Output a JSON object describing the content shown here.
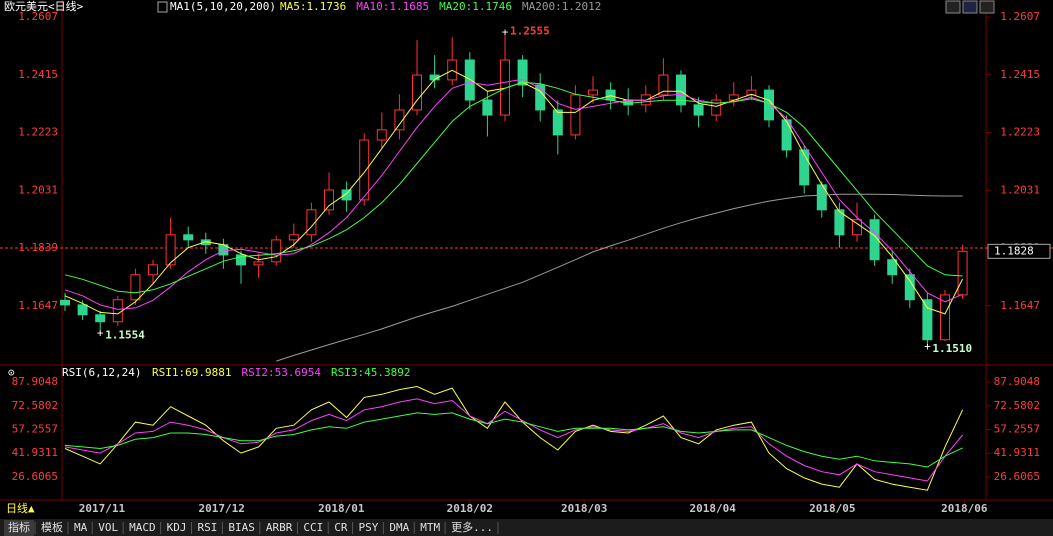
{
  "header": {
    "title": "欧元美元<日线>",
    "indicator": "MA1(5,10,20,200)"
  },
  "chart_data": [
    {
      "type": "candlestick",
      "up_color": "#ff3232",
      "down_color": "#2ed58f",
      "open": [
        1.1665,
        1.165,
        1.1617,
        1.1594,
        1.1667,
        1.175,
        1.1783,
        1.1883,
        1.1866,
        1.185,
        1.1816,
        1.1783,
        1.1793,
        1.1866,
        1.1883,
        1.1966,
        1.2032,
        1.1999,
        1.2198,
        1.2232,
        1.2298,
        1.2414,
        1.2398,
        1.2464,
        1.2331,
        1.2281,
        1.2464,
        1.2381,
        1.2298,
        1.2215,
        1.2348,
        1.2364,
        1.2331,
        1.2315,
        1.2348,
        1.2414,
        1.2315,
        1.2281,
        1.2331,
        1.2348,
        1.2364,
        1.2265,
        1.2165,
        1.2049,
        1.1966,
        1.1883,
        1.1933,
        1.18,
        1.175,
        1.1667,
        1.1534,
        1.1683
      ],
      "high": [
        1.169,
        1.1665,
        1.163,
        1.168,
        1.177,
        1.18,
        1.194,
        1.191,
        1.189,
        1.187,
        1.183,
        1.182,
        1.188,
        1.192,
        1.199,
        1.209,
        1.206,
        1.222,
        1.229,
        1.235,
        1.253,
        1.248,
        1.254,
        1.249,
        1.236,
        1.2555,
        1.248,
        1.242,
        1.233,
        1.238,
        1.241,
        1.239,
        1.237,
        1.238,
        1.247,
        1.243,
        1.234,
        1.235,
        1.239,
        1.241,
        1.238,
        1.228,
        1.218,
        1.206,
        1.199,
        1.199,
        1.195,
        1.183,
        1.177,
        1.169,
        1.17,
        1.185
      ],
      "low": [
        1.163,
        1.16,
        1.1554,
        1.158,
        1.165,
        1.172,
        1.177,
        1.184,
        1.182,
        1.177,
        1.172,
        1.174,
        1.178,
        1.184,
        1.186,
        1.195,
        1.196,
        1.198,
        1.217,
        1.22,
        1.228,
        1.237,
        1.238,
        1.23,
        1.221,
        1.226,
        1.234,
        1.226,
        1.215,
        1.22,
        1.232,
        1.23,
        1.228,
        1.229,
        1.233,
        1.229,
        1.224,
        1.226,
        1.231,
        1.233,
        1.224,
        1.214,
        1.202,
        1.194,
        1.184,
        1.186,
        1.178,
        1.172,
        1.164,
        1.151,
        1.153,
        1.167
      ],
      "close": [
        1.165,
        1.1617,
        1.1594,
        1.1667,
        1.175,
        1.1783,
        1.1883,
        1.1866,
        1.185,
        1.1816,
        1.1783,
        1.1793,
        1.1866,
        1.1883,
        1.1966,
        1.2032,
        1.1999,
        1.2198,
        1.2232,
        1.2298,
        1.2414,
        1.2398,
        1.2464,
        1.2331,
        1.2281,
        1.2464,
        1.2381,
        1.2298,
        1.2215,
        1.2348,
        1.2364,
        1.2331,
        1.2315,
        1.2348,
        1.2414,
        1.2315,
        1.2281,
        1.2331,
        1.2348,
        1.2364,
        1.2265,
        1.2165,
        1.2049,
        1.1966,
        1.1883,
        1.1933,
        1.18,
        1.175,
        1.1667,
        1.1534,
        1.1683,
        1.1828
      ],
      "series": [
        {
          "name": "MA5:1.1736",
          "color": "#ffff40",
          "values": [
            1.168,
            1.1655,
            1.1625,
            1.162,
            1.166,
            1.172,
            1.179,
            1.184,
            1.186,
            1.185,
            1.182,
            1.18,
            1.181,
            1.185,
            1.191,
            1.198,
            1.202,
            1.209,
            1.217,
            1.225,
            1.233,
            1.24,
            1.243,
            1.24,
            1.236,
            1.237,
            1.239,
            1.236,
            1.229,
            1.229,
            1.233,
            1.2345,
            1.233,
            1.233,
            1.236,
            1.236,
            1.232,
            1.231,
            1.233,
            1.235,
            1.233,
            1.226,
            1.215,
            1.205,
            1.196,
            1.192,
            1.188,
            1.181,
            1.173,
            1.164,
            1.162,
            1.1736
          ]
        },
        {
          "name": "MA10:1.1685",
          "color": "#ff40ff",
          "values": [
            1.17,
            1.168,
            1.165,
            1.1635,
            1.164,
            1.1665,
            1.171,
            1.176,
            1.18,
            1.183,
            1.1835,
            1.1825,
            1.1815,
            1.182,
            1.185,
            1.189,
            1.194,
            1.201,
            1.208,
            1.216,
            1.224,
            1.231,
            1.237,
            1.239,
            1.238,
            1.239,
            1.24,
            1.237,
            1.232,
            1.23,
            1.231,
            1.232,
            1.233,
            1.233,
            1.2345,
            1.235,
            1.233,
            1.232,
            1.2325,
            1.234,
            1.232,
            1.227,
            1.218,
            1.209,
            1.2,
            1.194,
            1.189,
            1.183,
            1.176,
            1.169,
            1.166,
            1.1685
          ]
        },
        {
          "name": "MA20:1.1746",
          "color": "#40ff40",
          "values": [
            1.175,
            1.1735,
            1.1715,
            1.1695,
            1.169,
            1.17,
            1.172,
            1.1745,
            1.177,
            1.1795,
            1.181,
            1.1815,
            1.182,
            1.183,
            1.1845,
            1.187,
            1.19,
            1.194,
            1.199,
            1.205,
            1.212,
            1.219,
            1.226,
            1.231,
            1.234,
            1.237,
            1.239,
            1.2385,
            1.237,
            1.235,
            1.234,
            1.233,
            1.232,
            1.2325,
            1.233,
            1.233,
            1.2325,
            1.232,
            1.2325,
            1.2335,
            1.232,
            1.229,
            1.224,
            1.217,
            1.21,
            1.203,
            1.196,
            1.19,
            1.184,
            1.178,
            1.175,
            1.1746
          ]
        },
        {
          "name": "MA200:1.2012",
          "color": "#9a9a9a",
          "values": [
            null,
            null,
            null,
            null,
            null,
            null,
            null,
            null,
            null,
            null,
            null,
            null,
            1.1463,
            1.1482,
            1.15,
            1.1518,
            1.1535,
            1.1552,
            1.157,
            1.159,
            1.161,
            1.1628,
            1.1645,
            1.1665,
            1.1685,
            1.1705,
            1.1725,
            1.175,
            1.1775,
            1.18,
            1.1826,
            1.1846,
            1.1865,
            1.1885,
            1.1905,
            1.1923,
            1.194,
            1.1955,
            1.197,
            1.1983,
            1.1995,
            1.2004,
            1.2012,
            1.2015,
            1.2018,
            1.2018,
            1.2018,
            1.2017,
            1.2015,
            1.2013,
            1.2012,
            1.2012
          ]
        }
      ],
      "markers": [
        {
          "x": 25,
          "y": 1.2555,
          "color": "#ff3c3c"
        },
        {
          "x": 2,
          "y": 1.1554,
          "color": "#c8ffc8"
        },
        {
          "x": 49,
          "y": 1.151,
          "label": "1.1510",
          "color": "#c8ffc8"
        }
      ],
      "price_line": 1.1839,
      "last_price": 1.1828,
      "xlim": [
        -0.5,
        51.5
      ],
      "ylim": [
        1.146,
        1.2637
      ],
      "yticks": [
        1.2607,
        1.2415,
        1.2223,
        1.2031,
        1.1839,
        1.1647
      ],
      "xticks": [
        {
          "value": 2.1,
          "label": "2017/11"
        },
        {
          "value": 8.9,
          "label": "2017/12"
        },
        {
          "value": 15.7,
          "label": "2018/01"
        },
        {
          "value": 23,
          "label": "2018/02"
        },
        {
          "value": 29.5,
          "label": "2018/03"
        },
        {
          "value": 36.8,
          "label": "2018/04"
        },
        {
          "value": 43.6,
          "label": "2018/05"
        },
        {
          "value": 51.1,
          "label": "2018/06"
        }
      ]
    },
    {
      "type": "line",
      "indicator": "RSI(6,12,24)",
      "series": [
        {
          "name": "RSI1:69.9881",
          "color": "#ffff40",
          "values": [
            45,
            40,
            35,
            48,
            62,
            60,
            72,
            66,
            60,
            50,
            42,
            46,
            58,
            60,
            70,
            75,
            65,
            78,
            80,
            83,
            85,
            80,
            84,
            66,
            58,
            75,
            62,
            52,
            44,
            56,
            60,
            56,
            55,
            60,
            66,
            52,
            48,
            57,
            60,
            62,
            42,
            32,
            26,
            22,
            20,
            35,
            25,
            22,
            20,
            18,
            46,
            69.9881
          ]
        },
        {
          "name": "RSI2:53.6954",
          "color": "#ff40ff",
          "values": [
            46,
            44,
            42,
            48,
            55,
            56,
            62,
            60,
            57,
            52,
            48,
            49,
            55,
            57,
            63,
            67,
            63,
            70,
            72,
            75,
            77,
            74,
            76,
            66,
            61,
            69,
            63,
            57,
            52,
            57,
            59,
            57,
            56,
            58,
            61,
            55,
            52,
            56,
            58,
            59,
            48,
            40,
            34,
            30,
            28,
            35,
            30,
            28,
            26,
            24,
            40,
            53.6954
          ]
        },
        {
          "name": "RSI3:45.3892",
          "color": "#40ff40",
          "values": [
            47,
            46,
            45,
            47,
            51,
            52,
            55,
            55,
            54,
            52,
            50,
            50,
            53,
            54,
            57,
            59,
            58,
            62,
            64,
            66,
            68,
            67,
            68,
            64,
            61,
            64,
            62,
            59,
            56,
            58,
            58,
            58,
            57,
            58,
            59,
            56,
            55,
            56,
            57,
            57,
            52,
            47,
            43,
            40,
            38,
            40,
            37,
            36,
            35,
            33,
            40,
            45.3892
          ]
        }
      ],
      "xlim": [
        -0.5,
        51.5
      ],
      "ylim": [
        11.7,
        94.4
      ],
      "yticks": [
        87.9048,
        72.5802,
        57.2557,
        41.9311,
        26.6065
      ]
    }
  ],
  "toolbar": {
    "period": "日线▲",
    "tabs": [
      "指标",
      "模板",
      "MA",
      "VOL",
      "MACD",
      "KDJ",
      "RSI",
      "BIAS",
      "ARBR",
      "CCI",
      "CR",
      "PSY",
      "DMA",
      "MTM",
      "更多..."
    ]
  }
}
